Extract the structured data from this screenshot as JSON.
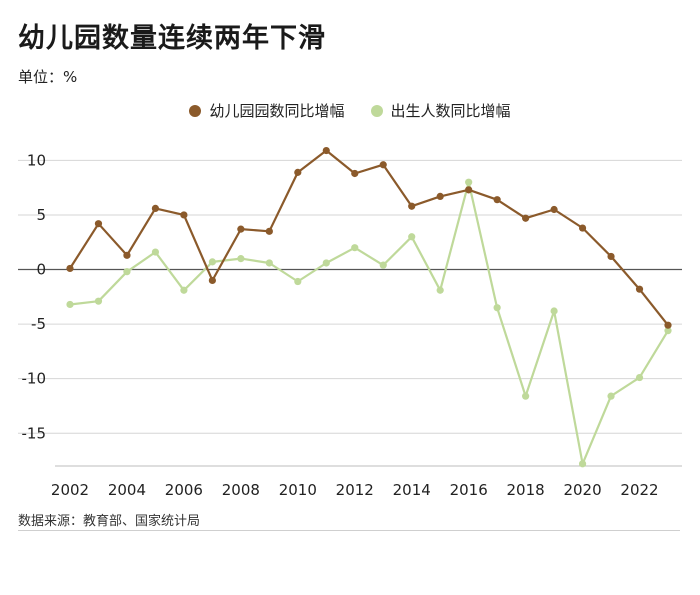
{
  "title": "幼儿园数量连续两年下滑",
  "unit_label": "单位：%",
  "source": "数据来源：教育部、国家统计局",
  "colors": {
    "series1": "#8B5A2B",
    "series2": "#BFD99A",
    "grid": "#d6d6d6",
    "zero": "#555555"
  },
  "chart_data": {
    "type": "line",
    "x": [
      2002,
      2003,
      2004,
      2005,
      2006,
      2007,
      2008,
      2009,
      2010,
      2011,
      2012,
      2013,
      2014,
      2015,
      2016,
      2017,
      2018,
      2019,
      2020,
      2021,
      2022,
      2023
    ],
    "series": [
      {
        "name": "幼儿园园数同比增幅",
        "color": "#8B5A2B",
        "values": [
          0.1,
          4.2,
          1.3,
          5.6,
          5.0,
          -1.0,
          3.7,
          3.5,
          8.9,
          10.9,
          8.8,
          9.6,
          5.8,
          6.7,
          7.3,
          6.4,
          4.7,
          5.5,
          3.8,
          1.2,
          -1.8,
          -5.1
        ]
      },
      {
        "name": "出生人数同比增幅",
        "color": "#BFD99A",
        "values": [
          -3.2,
          -2.9,
          -0.2,
          1.6,
          -1.9,
          0.7,
          1.0,
          0.6,
          -1.1,
          0.6,
          2.0,
          0.4,
          3.0,
          -1.9,
          8.0,
          -3.5,
          -11.6,
          -3.8,
          -17.8,
          -11.6,
          -9.9,
          -5.6
        ]
      }
    ],
    "xticks": [
      "2002",
      "2004",
      "2006",
      "2008",
      "2010",
      "2012",
      "2014",
      "2016",
      "2018",
      "2020",
      "2022"
    ],
    "yticks": [
      "10",
      "5",
      "0",
      "-5",
      "-10",
      "-15"
    ],
    "ytick_values": [
      10,
      5,
      0,
      -5,
      -10,
      -15
    ],
    "xlim": [
      2002,
      2023
    ],
    "ylim": [
      -18,
      11.5
    ],
    "grid": true,
    "legend_position": "top"
  }
}
